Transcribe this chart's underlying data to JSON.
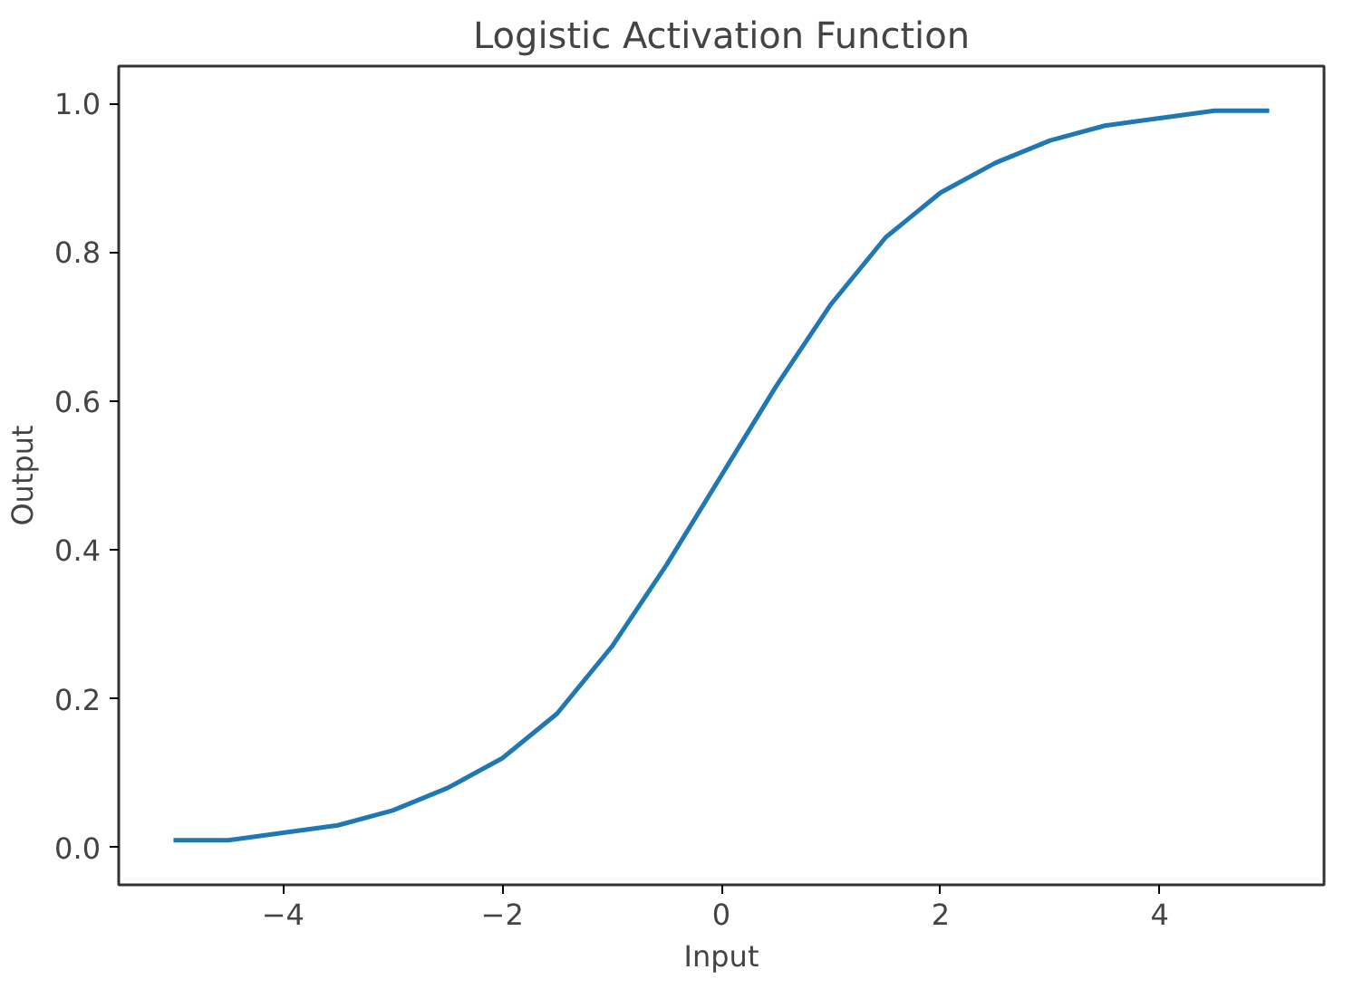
{
  "chart_data": {
    "type": "line",
    "title": "Logistic Activation Function",
    "xlabel": "Input",
    "ylabel": "Output",
    "x": [
      -5,
      -4.5,
      -4,
      -3.5,
      -3,
      -2.5,
      -2,
      -1.5,
      -1,
      -0.5,
      0,
      0.5,
      1,
      1.5,
      2,
      2.5,
      3,
      3.5,
      4,
      4.5,
      5
    ],
    "series": [
      {
        "color": "#1f77b4",
        "values": [
          0.01,
          0.01,
          0.02,
          0.03,
          0.05,
          0.08,
          0.12,
          0.18,
          0.27,
          0.38,
          0.5,
          0.62,
          0.73,
          0.82,
          0.88,
          0.92,
          0.95,
          0.97,
          0.98,
          0.99,
          0.99
        ]
      }
    ],
    "xlim": [
      -5.5,
      5.5
    ],
    "ylim": [
      -0.05,
      1.05
    ],
    "xticks": [
      {
        "value": -4,
        "label": "−4"
      },
      {
        "value": -2,
        "label": "−2"
      },
      0,
      2,
      4
    ],
    "yticks": [
      {
        "value": 0,
        "label": "0.0"
      },
      {
        "value": 0.2,
        "label": "0.2"
      },
      {
        "value": 0.4,
        "label": "0.4"
      },
      {
        "value": 0.6,
        "label": "0.6"
      },
      {
        "value": 0.8,
        "label": "0.8"
      },
      {
        "value": 1,
        "label": "1.0"
      }
    ],
    "grid": false,
    "marker": "none",
    "line_style": "solid"
  }
}
